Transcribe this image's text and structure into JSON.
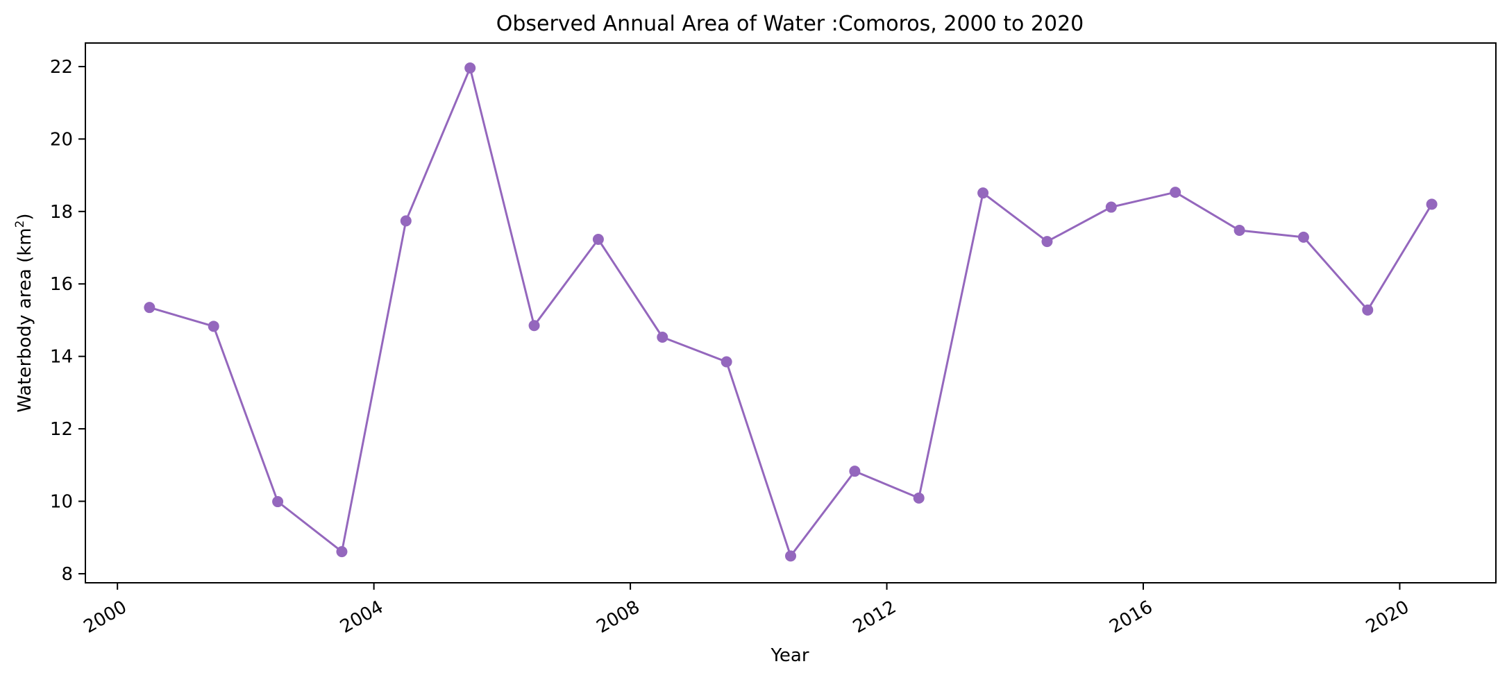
{
  "chart_data": {
    "type": "line",
    "title": "Observed Annual Area of Water :Comoros, 2000 to 2020",
    "xlabel": "Year",
    "ylabel": "Waterbody area (km²)",
    "ylabel_main": "Waterbody area (km",
    "ylabel_sup": "2",
    "ylabel_close": ")",
    "xlim": [
      1999.5,
      2021.5
    ],
    "ylim": [
      7.75,
      22.65
    ],
    "x_ticks": [
      {
        "value": 2000,
        "label": "2000"
      },
      {
        "value": 2004,
        "label": "2004"
      },
      {
        "value": 2008,
        "label": "2008"
      },
      {
        "value": 2012,
        "label": "2012"
      },
      {
        "value": 2016,
        "label": "2016"
      },
      {
        "value": 2020,
        "label": "2020"
      }
    ],
    "y_ticks": [
      {
        "value": 8,
        "label": "8"
      },
      {
        "value": 10,
        "label": "10"
      },
      {
        "value": 12,
        "label": "12"
      },
      {
        "value": 14,
        "label": "14"
      },
      {
        "value": 16,
        "label": "16"
      },
      {
        "value": 18,
        "label": "18"
      },
      {
        "value": 20,
        "label": "20"
      },
      {
        "value": 22,
        "label": "22"
      }
    ],
    "grid": false,
    "legend": "none",
    "series": [
      {
        "color": "#9467bd",
        "marker": "circle",
        "x": [
          2000.5,
          2001.5,
          2002.5,
          2003.5,
          2004.5,
          2005.5,
          2006.5,
          2007.5,
          2008.5,
          2009.5,
          2010.5,
          2011.5,
          2012.5,
          2013.5,
          2014.5,
          2015.5,
          2016.5,
          2017.5,
          2018.5,
          2019.5,
          2020.5
        ],
        "values": [
          15.35,
          14.83,
          9.99,
          8.61,
          17.74,
          21.96,
          14.85,
          17.23,
          14.53,
          13.85,
          8.49,
          10.83,
          10.09,
          18.51,
          17.17,
          18.12,
          18.53,
          17.48,
          17.29,
          15.28,
          18.2
        ]
      }
    ]
  }
}
